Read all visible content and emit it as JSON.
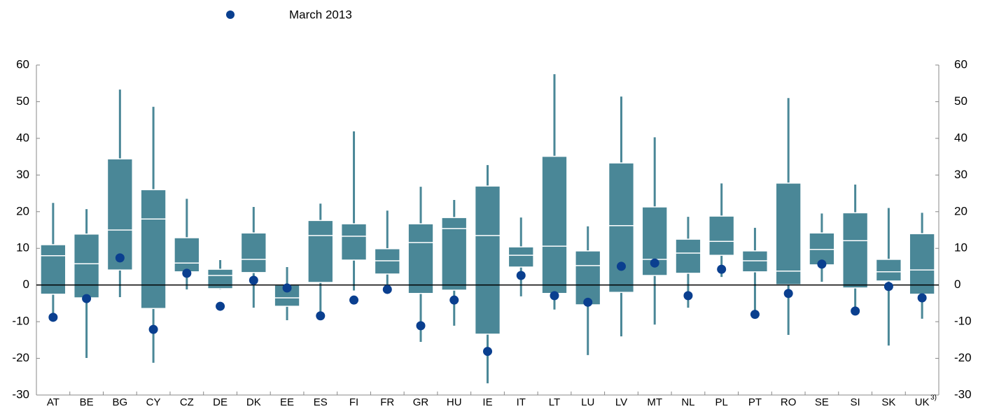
{
  "chart_data": {
    "type": "box",
    "categories": [
      "AT",
      "BE",
      "BG",
      "CY",
      "CZ",
      "DE",
      "DK",
      "EE",
      "ES",
      "FI",
      "FR",
      "GR",
      "HU",
      "IE",
      "IT",
      "LT",
      "LU",
      "LV",
      "MT",
      "NL",
      "PL",
      "PT",
      "RO",
      "SE",
      "SI",
      "SK",
      "UK"
    ],
    "annotations": [
      "3)"
    ],
    "boxes": {
      "color": "#4a8797",
      "min": [
        -8.8,
        -19.9,
        -3.3,
        -21.2,
        -1.2,
        -1.2,
        -6.2,
        -9.6,
        -8.0,
        -1.5,
        -0.8,
        -15.5,
        -11.1,
        -26.8,
        -3.1,
        -6.7,
        -19.1,
        -14.0,
        -10.8,
        -6.2,
        2.2,
        -7.2,
        -13.6,
        0.9,
        -6.9,
        -16.5,
        -9.2
      ],
      "q1": [
        -2.5,
        -3.5,
        4.1,
        -6.4,
        3.6,
        -1.0,
        3.4,
        -5.8,
        0.7,
        6.8,
        3.0,
        -2.3,
        -1.4,
        -13.4,
        4.9,
        -2.3,
        -5.4,
        -2.0,
        2.6,
        3.2,
        8.1,
        3.6,
        0.1,
        5.5,
        -0.8,
        1.1,
        -2.5
      ],
      "median": [
        8.0,
        5.8,
        15.0,
        18.0,
        6.0,
        2.6,
        7.0,
        -3.5,
        13.5,
        13.3,
        6.6,
        11.6,
        15.4,
        13.5,
        8.1,
        10.6,
        5.3,
        16.2,
        7.0,
        8.7,
        11.9,
        6.6,
        3.8,
        9.7,
        12.1,
        3.6,
        4.1
      ],
      "q3": [
        11.0,
        13.9,
        34.4,
        26.0,
        12.9,
        4.3,
        14.2,
        0.0,
        17.6,
        16.7,
        9.9,
        16.7,
        18.4,
        27.0,
        10.4,
        35.1,
        9.3,
        33.3,
        21.3,
        12.5,
        18.8,
        9.3,
        27.8,
        14.2,
        19.7,
        7.0,
        14.0
      ],
      "max": [
        22.4,
        20.7,
        53.3,
        48.6,
        23.5,
        6.8,
        21.3,
        4.9,
        22.2,
        41.9,
        20.3,
        26.8,
        23.2,
        32.7,
        18.4,
        57.5,
        16.0,
        51.4,
        40.3,
        18.6,
        27.7,
        15.6,
        51.0,
        19.5,
        27.4,
        21.0,
        19.7
      ]
    },
    "points": {
      "name": "March 2013",
      "color": "#0a3f8f",
      "values": [
        -8.8,
        -3.7,
        7.4,
        -12.1,
        3.2,
        -5.8,
        1.3,
        -0.8,
        -8.4,
        -4.1,
        -1.2,
        -11.1,
        -4.1,
        -18.1,
        2.6,
        -2.9,
        -4.7,
        5.1,
        6.0,
        -2.9,
        4.3,
        -8.0,
        -2.3,
        5.7,
        -7.1,
        -0.4,
        -3.5
      ]
    },
    "ylim": [
      -30,
      60
    ],
    "yticks": [
      -30,
      -20,
      -10,
      0,
      10,
      20,
      30,
      40,
      50,
      60
    ]
  }
}
